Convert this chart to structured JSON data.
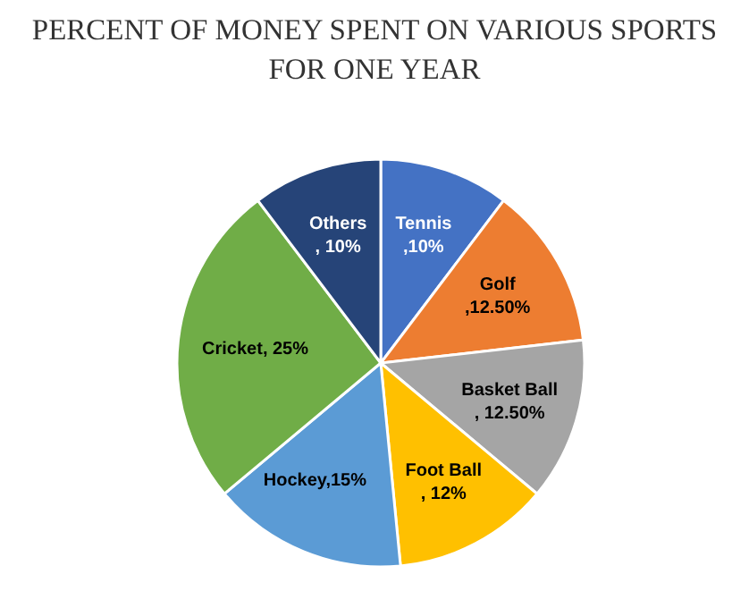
{
  "chart_data": {
    "type": "pie",
    "title": "PERCENT OF MONEY SPENT ON VARIOUS SPORTS FOR ONE YEAR",
    "categories": [
      "Tennis",
      "Golf",
      "Basket Ball",
      "Foot Ball",
      "Hockey",
      "Cricket",
      "Others"
    ],
    "values": [
      10,
      12.5,
      12.5,
      12,
      15,
      25,
      10
    ],
    "colors": [
      "#4472c4",
      "#ed7d31",
      "#a5a5a5",
      "#ffc000",
      "#5b9bd5",
      "#70ad47",
      "#264478"
    ],
    "value_labels": [
      ",10%",
      ",12.50%",
      ", 12.50%",
      ", 12%",
      ",15%",
      ", 25%",
      ", 10%"
    ]
  }
}
